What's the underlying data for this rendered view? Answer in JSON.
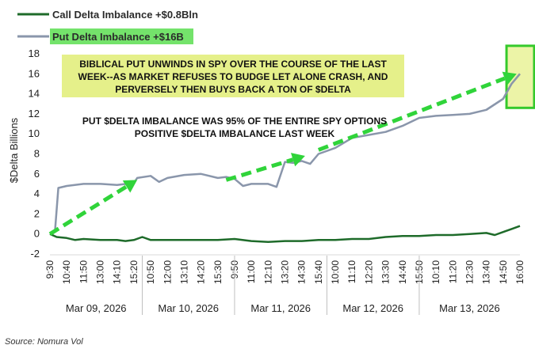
{
  "chart_data": {
    "type": "line",
    "ylabel": "$Delta Billions",
    "ylim": [
      -2,
      18
    ],
    "yticks": [
      -2,
      0,
      2,
      4,
      6,
      8,
      10,
      12,
      14,
      16,
      18
    ],
    "x_tick_labels": [
      "9:30",
      "10:40",
      "11:50",
      "13:00",
      "14:10",
      "15:20",
      "10:50",
      "12:00",
      "13:10",
      "14:20",
      "15:30",
      "9:50",
      "11:00",
      "12:10",
      "13:20",
      "14:30",
      "15:40",
      "10:00",
      "11:10",
      "12:20",
      "13:30",
      "14:40",
      "15:50",
      "10:10",
      "11:20",
      "12:30",
      "13:40",
      "14:50",
      "16:00"
    ],
    "dates": [
      "Mar 09, 2026",
      "Mar 10, 2026",
      "Mar 11, 2026",
      "Mar 12, 2026",
      "Mar 13, 2026"
    ],
    "series": [
      {
        "name": "Call Delta Imbalance +$0.8Bln",
        "color": "#1e6b2a",
        "x": [
          0,
          0.4,
          1,
          1.5,
          2,
          3,
          4,
          4.5,
          5,
          5.5,
          6,
          7,
          8,
          9,
          10,
          11,
          12,
          13,
          14,
          15,
          16,
          17,
          18,
          19,
          20,
          21,
          22,
          23,
          24,
          25,
          26,
          26.5,
          27,
          27.5,
          28
        ],
        "values": [
          0,
          -0.3,
          -0.4,
          -0.6,
          -0.5,
          -0.6,
          -0.6,
          -0.7,
          -0.6,
          -0.3,
          -0.6,
          -0.6,
          -0.6,
          -0.6,
          -0.6,
          -0.5,
          -0.7,
          -0.8,
          -0.7,
          -0.7,
          -0.6,
          -0.6,
          -0.5,
          -0.5,
          -0.3,
          -0.2,
          -0.2,
          -0.1,
          -0.1,
          0.0,
          0.1,
          -0.1,
          0.2,
          0.5,
          0.8
        ]
      },
      {
        "name": "Put Delta Imbalance +$16B",
        "color": "#8a96ab",
        "x": [
          0,
          0.3,
          0.5,
          1,
          2,
          3,
          4,
          5,
          5.2,
          6,
          6.5,
          7,
          8,
          9,
          10,
          10.5,
          11,
          11.5,
          12,
          13,
          13.5,
          14,
          14.5,
          15,
          15.5,
          16,
          17,
          18,
          19,
          20,
          21,
          22,
          23,
          24,
          25,
          26,
          27,
          27.5,
          28
        ],
        "values": [
          0.1,
          0.3,
          4.6,
          4.8,
          5.0,
          5.0,
          4.9,
          5.1,
          5.6,
          5.8,
          5.2,
          5.6,
          5.9,
          6.0,
          5.6,
          5.7,
          5.5,
          4.8,
          5.0,
          5.0,
          4.7,
          7.2,
          7.1,
          7.3,
          7.0,
          8.0,
          8.6,
          9.6,
          9.9,
          10.2,
          10.8,
          11.6,
          11.8,
          11.9,
          12.0,
          12.4,
          13.5,
          15.0,
          16.0
        ]
      }
    ],
    "annotations": {
      "headline_line1": "BIBLICAL PUT UNWINDS IN SPY OVER THE COURSE OF THE LAST",
      "headline_line2": "WEEK--AS MARKET REFUSES TO BUDGE LET ALONE CRASH, AND",
      "headline_line3": "PERVERSELY THEN BUYS BACK A TON OF $DELTA",
      "note_line1": "PUT $DELTA IMBALANCE WAS 95% OF THE ENTIRE SPY OPTIONS",
      "note_line2": "POSITIVE $DELTA IMBALANCE LAST WEEK"
    },
    "highlight_color": "#e5f08a",
    "highlight_border": "#35c92b",
    "arrow_color": "#30d43a"
  },
  "source": "Source: Nomura Vol"
}
